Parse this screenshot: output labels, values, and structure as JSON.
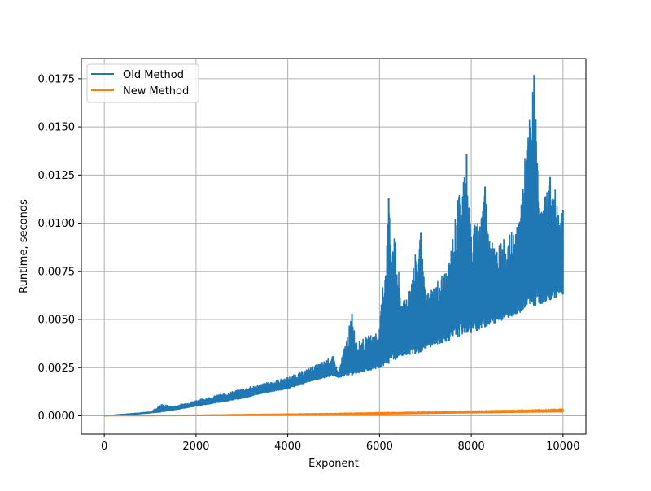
{
  "chart_data": {
    "type": "line",
    "title": "",
    "xlabel": "Exponent",
    "ylabel": "Runtime, seconds",
    "xlim": [
      -500,
      10500
    ],
    "ylim": [
      -0.00095,
      0.01855
    ],
    "x_ticks": [
      0,
      2000,
      4000,
      6000,
      8000,
      10000
    ],
    "x_tick_labels": [
      "0",
      "2000",
      "4000",
      "6000",
      "8000",
      "10000"
    ],
    "y_ticks": [
      0.0,
      0.0025,
      0.005,
      0.0075,
      0.01,
      0.0125,
      0.015,
      0.0175
    ],
    "y_tick_labels": [
      "0.0000",
      "0.0025",
      "0.0050",
      "0.0075",
      "0.0100",
      "0.0125",
      "0.0150",
      "0.0175"
    ],
    "grid": true,
    "legend": "top-left",
    "series": [
      {
        "name": "Old Method",
        "color": "#1f77b4",
        "x": [
          0,
          500,
          1000,
          1250,
          1500,
          2000,
          2500,
          3000,
          3500,
          4000,
          4500,
          5000,
          5100,
          5400,
          5500,
          6000,
          6200,
          6350,
          6500,
          6900,
          7000,
          7500,
          7700,
          7900,
          8000,
          8300,
          8500,
          9000,
          9370,
          9500,
          9720,
          10000
        ],
        "min": [
          0.0,
          5e-05,
          0.00015,
          0.0002,
          0.0003,
          0.0005,
          0.0007,
          0.0009,
          0.0012,
          0.0014,
          0.0018,
          0.0021,
          0.002,
          0.0021,
          0.0022,
          0.0025,
          0.0027,
          0.0029,
          0.0031,
          0.0033,
          0.0035,
          0.0039,
          0.0041,
          0.0043,
          0.0043,
          0.0046,
          0.0048,
          0.0053,
          0.0057,
          0.0058,
          0.006,
          0.0063
        ],
        "max": [
          0.0,
          0.0001,
          0.0002,
          0.0006,
          0.0005,
          0.0008,
          0.0011,
          0.0014,
          0.0017,
          0.002,
          0.0025,
          0.0031,
          0.0022,
          0.0053,
          0.0038,
          0.0045,
          0.0113,
          0.009,
          0.0057,
          0.0095,
          0.0063,
          0.0078,
          0.0112,
          0.0136,
          0.0093,
          0.0119,
          0.0087,
          0.0098,
          0.0177,
          0.0105,
          0.0124,
          0.0107
        ]
      },
      {
        "name": "New Method",
        "color": "#ff7f0e",
        "x": [
          0,
          1000,
          2000,
          3000,
          4000,
          5000,
          6000,
          7000,
          8000,
          9000,
          10000
        ],
        "min": [
          0.0,
          5e-06,
          1e-05,
          3e-05,
          5e-05,
          7e-05,
          9e-05,
          0.00012,
          0.00015,
          0.00018,
          0.0002
        ],
        "max": [
          0.0,
          2e-05,
          4e-05,
          7e-05,
          0.0001,
          0.00013,
          0.00017,
          0.00021,
          0.00026,
          0.0003,
          0.00036
        ]
      }
    ]
  }
}
